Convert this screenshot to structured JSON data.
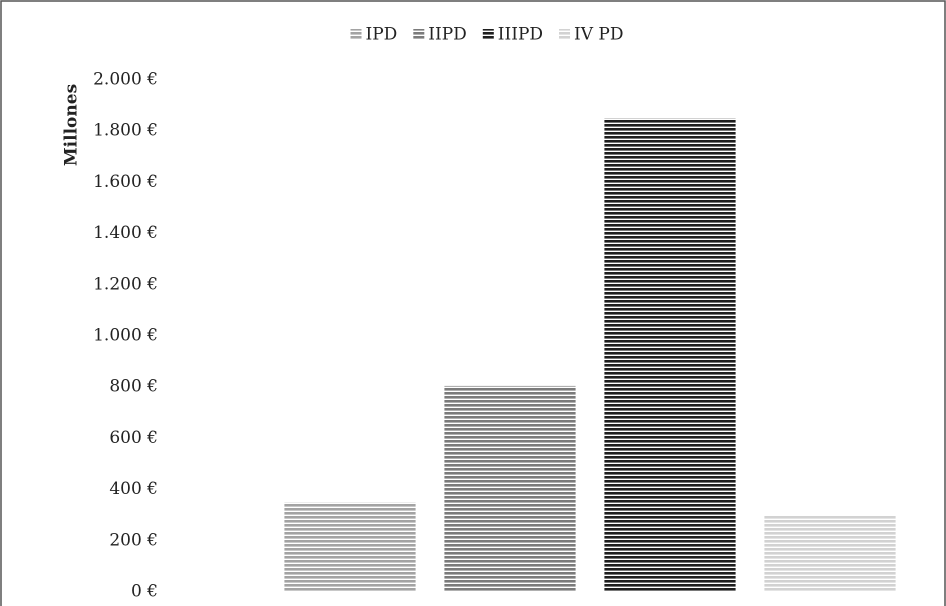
{
  "chart_data": {
    "type": "bar",
    "y_label": "Millones",
    "categories": [
      null
    ],
    "series": [
      {
        "name": "IPD",
        "color": "#a3a3a3",
        "values": [
          350
        ]
      },
      {
        "name": "IIPD",
        "color": "#7b7b7b",
        "values": [
          805
        ]
      },
      {
        "name": "IIIPD",
        "color": "#1f1f1f",
        "values": [
          1850
        ]
      },
      {
        "name": "IV PD",
        "color": "#d2d2d2",
        "values": [
          300
        ]
      }
    ],
    "ylim": [
      0,
      2000
    ],
    "yticks": [
      {
        "value": 0,
        "label": "0 €"
      },
      {
        "value": 200,
        "label": "200 €"
      },
      {
        "value": 400,
        "label": "400 €"
      },
      {
        "value": 600,
        "label": "600 €"
      },
      {
        "value": 800,
        "label": "800 €"
      },
      {
        "value": 1000,
        "label": "1.000 €"
      },
      {
        "value": 1200,
        "label": "1.200 €"
      },
      {
        "value": 1400,
        "label": "1.400 €"
      },
      {
        "value": 1600,
        "label": "1.600 €"
      },
      {
        "value": 1800,
        "label": "1.800 €"
      },
      {
        "value": 2000,
        "label": "2.000 €"
      }
    ],
    "grid": false,
    "legend": "top"
  }
}
